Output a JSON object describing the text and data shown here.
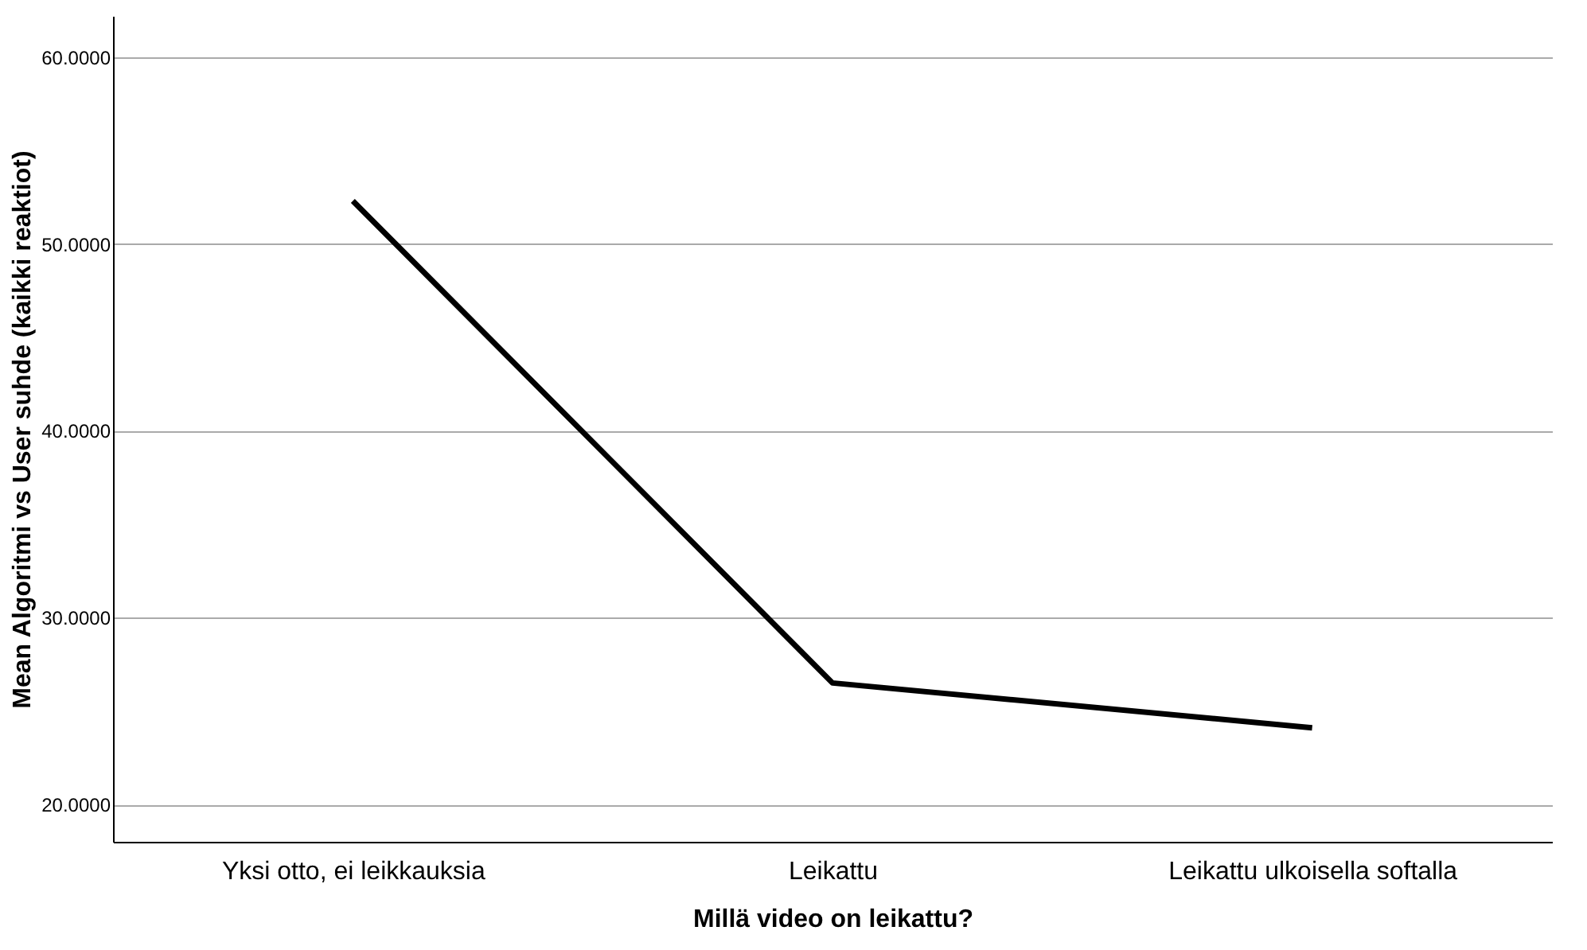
{
  "chart_data": {
    "type": "line",
    "xlabel": "Millä video on leikattu?",
    "ylabel": "Mean Algoritmi vs User suhde (kaikki reaktiot)",
    "categories": [
      "Yksi otto, ei leikkauksia",
      "Leikattu",
      "Leikattu ulkoisella softalla"
    ],
    "series": [
      {
        "color": "#000000",
        "values": [
          52.3,
          26.5,
          24.1
        ]
      }
    ],
    "ylim": [
      18,
      62.2
    ],
    "yticks": [
      {
        "value": 20,
        "label": "20.0000"
      },
      {
        "value": 30,
        "label": "30.0000"
      },
      {
        "value": 40,
        "label": "40.0000"
      },
      {
        "value": 50,
        "label": "50.0000"
      },
      {
        "value": 60,
        "label": "60.0000"
      }
    ],
    "grid": "y",
    "marker": "none",
    "line_style": "solid"
  }
}
